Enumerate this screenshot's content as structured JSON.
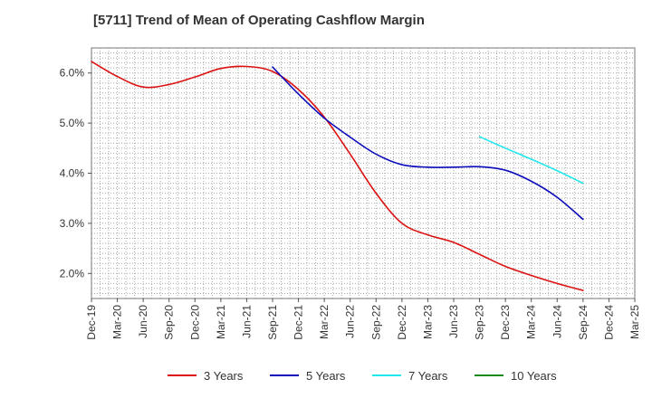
{
  "chart_data": {
    "type": "line",
    "title": "[5711]  Trend of Mean of Operating Cashflow Margin",
    "xlabel": "",
    "ylabel": "",
    "categories": [
      "Dec-19",
      "Mar-20",
      "Jun-20",
      "Sep-20",
      "Dec-20",
      "Mar-21",
      "Jun-21",
      "Sep-21",
      "Dec-21",
      "Mar-22",
      "Jun-22",
      "Sep-22",
      "Dec-22",
      "Mar-23",
      "Jun-23",
      "Sep-23",
      "Dec-23",
      "Mar-24",
      "Jun-24",
      "Sep-24",
      "Dec-24",
      "Mar-25"
    ],
    "ylim": [
      1.5,
      6.5
    ],
    "yticks": [
      2.0,
      3.0,
      4.0,
      5.0,
      6.0
    ],
    "ytick_labels": [
      "2.0%",
      "3.0%",
      "4.0%",
      "5.0%",
      "6.0%"
    ],
    "grid": true,
    "legend_position": "bottom",
    "series": [
      {
        "name": "3 Years",
        "color": "#dd1111",
        "values": [
          6.23,
          5.93,
          5.72,
          5.77,
          5.92,
          6.09,
          6.13,
          6.03,
          5.67,
          5.12,
          4.38,
          3.6,
          3.0,
          2.77,
          2.62,
          2.38,
          2.14,
          1.96,
          1.8,
          1.66,
          null,
          null
        ]
      },
      {
        "name": "5 Years",
        "color": "#0b0bbb",
        "values": [
          null,
          null,
          null,
          null,
          null,
          null,
          null,
          6.12,
          5.58,
          5.1,
          4.72,
          4.38,
          4.17,
          4.12,
          4.12,
          4.13,
          4.06,
          3.84,
          3.52,
          3.08,
          null,
          null
        ]
      },
      {
        "name": "7 Years",
        "color": "#22e8ee",
        "values": [
          null,
          null,
          null,
          null,
          null,
          null,
          null,
          null,
          null,
          null,
          null,
          null,
          null,
          null,
          null,
          4.73,
          4.5,
          4.28,
          4.05,
          3.8,
          null,
          null
        ]
      },
      {
        "name": "10 Years",
        "color": "#1a8a1a",
        "values": [
          null,
          null,
          null,
          null,
          null,
          null,
          null,
          null,
          null,
          null,
          null,
          null,
          null,
          null,
          null,
          null,
          null,
          null,
          null,
          null,
          null,
          null
        ]
      }
    ]
  }
}
